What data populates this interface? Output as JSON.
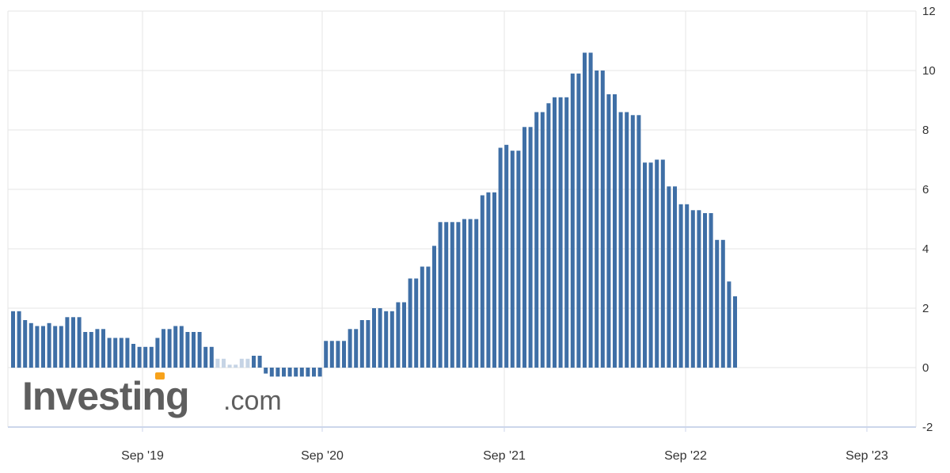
{
  "brand": {
    "name": "Investing",
    "suffix": ".com",
    "accent_color": "#f7a21b"
  },
  "colors": {
    "bar": "#3f6fa6",
    "bar_light": "#c6d4e5",
    "grid": "#e6e6e6",
    "axis": "#ccd6eb"
  },
  "chart_data": {
    "type": "bar",
    "title": "",
    "xlabel": "",
    "ylabel": "",
    "ylim": [
      -2,
      12
    ],
    "yticks": [
      "12",
      "10",
      "8",
      "6",
      "4",
      "2",
      "0",
      "-2"
    ],
    "x_tick_labels": [
      "Sep '19",
      "Sep '20",
      "Sep '21",
      "Sep '22",
      "Sep '23"
    ],
    "grid": true,
    "series": [
      {
        "values": [
          1.9,
          1.9,
          1.6,
          1.5,
          1.4,
          1.4,
          1.5,
          1.4,
          1.4,
          1.7,
          1.7,
          1.7,
          1.2,
          1.2,
          1.3,
          1.3,
          1.0,
          1.0,
          1.0,
          1.0,
          0.8,
          0.7,
          0.7,
          0.7,
          1.0,
          1.3,
          1.3,
          1.4,
          1.4,
          1.2,
          1.2,
          1.2,
          0.7,
          0.7,
          0.3,
          0.3,
          0.1,
          0.1,
          0.3,
          0.3,
          0.4,
          0.4,
          -0.2,
          -0.3,
          -0.3,
          -0.3,
          -0.3,
          -0.3,
          -0.3,
          -0.3,
          -0.3,
          -0.3,
          0.9,
          0.9,
          0.9,
          0.9,
          1.3,
          1.3,
          1.6,
          1.6,
          2.0,
          2.0,
          1.9,
          1.9,
          2.2,
          2.2,
          3.0,
          3.0,
          3.4,
          3.4,
          4.1,
          4.9,
          4.9,
          4.9,
          4.9,
          5.0,
          5.0,
          5.0,
          5.8,
          5.9,
          5.9,
          7.4,
          7.5,
          7.3,
          7.3,
          8.1,
          8.1,
          8.6,
          8.6,
          8.9,
          9.1,
          9.1,
          9.1,
          9.9,
          9.9,
          10.6,
          10.6,
          10.0,
          10.0,
          9.2,
          9.2,
          8.6,
          8.6,
          8.5,
          8.5,
          6.9,
          6.9,
          7.0,
          7.0,
          6.1,
          6.1,
          5.5,
          5.5,
          5.3,
          5.3,
          5.2,
          5.2,
          4.3,
          4.3,
          2.9,
          2.4
        ]
      }
    ]
  }
}
